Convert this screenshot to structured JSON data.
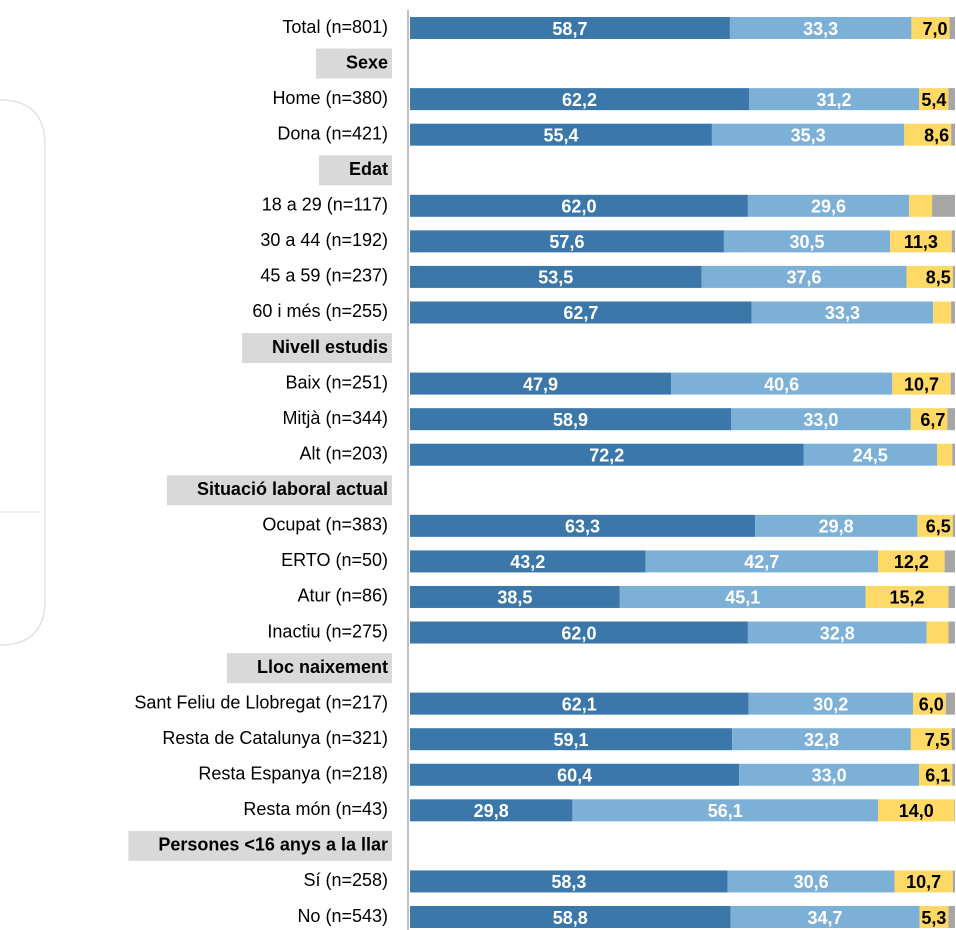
{
  "chart_data": {
    "type": "bar",
    "orientation": "horizontal",
    "stacked": true,
    "categories": [
      "Total (n=801)",
      "Sexe",
      "Home (n=380)",
      "Dona (n=421)",
      "Edat",
      "18 a 29 (n=117)",
      "30 a 44 (n=192)",
      "45 a 59 (n=237)",
      "60 i més (n=255)",
      "Nivell estudis",
      "Baix (n=251)",
      "Mitjà (n=344)",
      "Alt (n=203)",
      "Situació laboral actual",
      "Ocupat (n=383)",
      "ERTO (n=50)",
      "Atur (n=86)",
      "Inactiu (n=275)",
      "Lloc naixement",
      "Sant Feliu de Llobregat (n=217)",
      "Resta de Catalunya (n=321)",
      "Resta Espanya (n=218)",
      "Resta món (n=43)",
      "Persones <16 anys a la llar",
      "Sí (n=258)",
      "No (n=543)"
    ],
    "xlim": [
      0,
      100
    ],
    "series": [
      {
        "color": "#3b77a8",
        "label_color": "#ffffff",
        "values": [
          58.7,
          null,
          62.2,
          55.4,
          null,
          62.0,
          57.6,
          53.5,
          62.7,
          null,
          47.9,
          58.9,
          72.2,
          null,
          63.3,
          43.2,
          38.5,
          62.0,
          null,
          62.1,
          59.1,
          60.4,
          29.8,
          null,
          58.3,
          58.8
        ],
        "value_labels": [
          "58,7",
          null,
          "62,2",
          "55,4",
          null,
          "62,0",
          "57,6",
          "53,5",
          "62,7",
          null,
          "47,9",
          "58,9",
          "72,2",
          null,
          "63,3",
          "43,2",
          "38,5",
          "62,0",
          null,
          "62,1",
          "59,1",
          "60,4",
          "29,8",
          null,
          "58,3",
          "58,8"
        ]
      },
      {
        "color": "#7db0d7",
        "label_color": "#ffffff",
        "values": [
          33.3,
          null,
          31.2,
          35.3,
          null,
          29.6,
          30.5,
          37.6,
          33.3,
          null,
          40.6,
          33.0,
          24.5,
          null,
          29.8,
          42.7,
          45.1,
          32.8,
          null,
          30.2,
          32.8,
          33.0,
          56.1,
          null,
          30.6,
          34.7
        ],
        "value_labels": [
          "33,3",
          null,
          "31,2",
          "35,3",
          null,
          "29,6",
          "30,5",
          "37,6",
          "33,3",
          null,
          "40,6",
          "33,0",
          "24,5",
          null,
          "29,8",
          "42,7",
          "45,1",
          "32,8",
          null,
          "30,2",
          "32,8",
          "33,0",
          "56,1",
          null,
          "30,6",
          "34,7"
        ]
      },
      {
        "color": "#ffd966",
        "label_color": "#000000",
        "values": [
          7.0,
          null,
          5.4,
          8.6,
          null,
          4.2,
          11.3,
          8.5,
          3.3,
          null,
          10.7,
          6.7,
          2.8,
          null,
          6.5,
          12.2,
          15.2,
          4.0,
          null,
          6.0,
          7.5,
          6.1,
          14.0,
          null,
          10.7,
          5.3
        ],
        "value_labels": [
          "7,0",
          null,
          "5,4",
          "8,6",
          null,
          null,
          "11,3",
          "8,5",
          null,
          null,
          "10,7",
          "6,7",
          null,
          null,
          "6,5",
          "12,2",
          "15,2",
          null,
          null,
          "6,0",
          "7,5",
          "6,1",
          "14,0",
          null,
          "10,7",
          "5,3"
        ]
      },
      {
        "color": "#a6a6a6",
        "values": [
          1.0,
          null,
          1.2,
          0.7,
          null,
          4.2,
          0.6,
          0.4,
          0.7,
          null,
          0.8,
          1.4,
          0.5,
          null,
          0.4,
          1.9,
          1.2,
          1.2,
          null,
          1.7,
          0.6,
          0.5,
          0.1,
          null,
          0.4,
          1.2
        ]
      }
    ]
  }
}
